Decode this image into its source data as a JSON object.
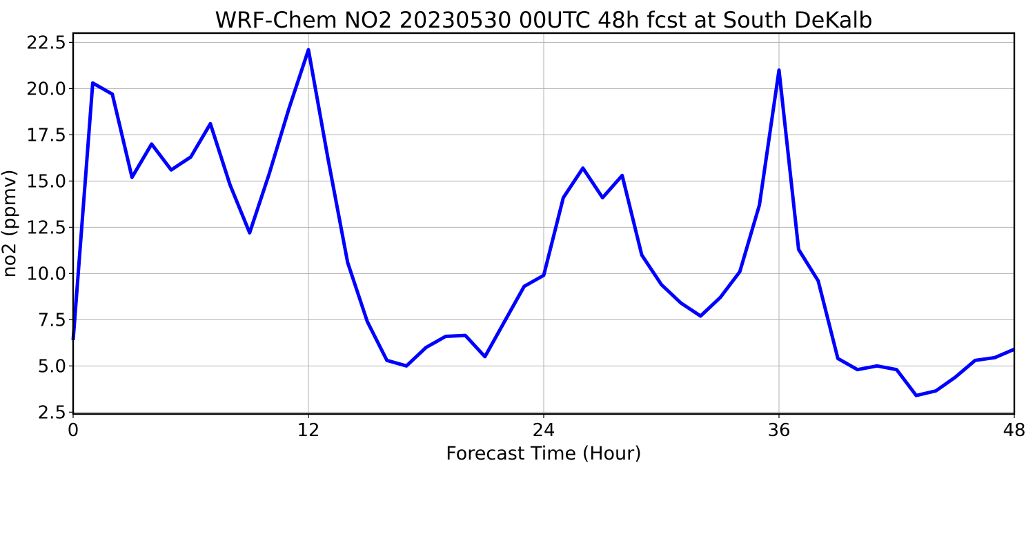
{
  "chart_data": {
    "type": "line",
    "title": "WRF-Chem NO2  20230530 00UTC 48h fcst at South DeKalb",
    "xlabel": "Forecast Time (Hour)",
    "ylabel": "no2  (ppmv)",
    "xlim": [
      0,
      48
    ],
    "ylim": [
      2.4,
      23.0
    ],
    "x_ticks": [
      0,
      12,
      24,
      36,
      48
    ],
    "x_tick_labels": [
      "0",
      "12",
      "24",
      "36",
      "48"
    ],
    "y_ticks": [
      2.5,
      5.0,
      7.5,
      10.0,
      12.5,
      15.0,
      17.5,
      20.0,
      22.5
    ],
    "y_tick_labels": [
      "2.5",
      "5.0",
      "7.5",
      "10.0",
      "12.5",
      "15.0",
      "17.5",
      "20.0",
      "22.5"
    ],
    "grid": true,
    "line_color": "#0000ff",
    "series": [
      {
        "x": [
          0,
          1,
          2,
          3,
          4,
          5,
          6,
          7,
          8,
          9,
          10,
          11,
          12,
          13,
          14,
          15,
          16,
          17,
          18,
          19,
          20,
          21,
          22,
          23,
          24,
          25,
          26,
          27,
          28,
          29,
          30,
          31,
          32,
          33,
          34,
          35,
          36,
          37,
          38,
          39,
          40,
          41,
          42,
          43,
          44,
          45,
          46,
          47,
          48
        ],
        "values": [
          6.4,
          20.3,
          19.7,
          15.2,
          17.0,
          15.6,
          16.3,
          18.1,
          14.8,
          12.2,
          15.4,
          18.9,
          22.1,
          16.2,
          10.6,
          7.4,
          5.3,
          5.0,
          6.0,
          6.6,
          6.65,
          5.5,
          7.4,
          9.3,
          9.9,
          14.1,
          15.7,
          14.1,
          15.3,
          11.0,
          9.4,
          8.4,
          7.7,
          8.7,
          10.1,
          13.7,
          21.0,
          11.3,
          9.6,
          5.4,
          4.8,
          5.0,
          4.8,
          3.4,
          3.65,
          4.4,
          5.3,
          5.45,
          5.9
        ]
      }
    ]
  }
}
